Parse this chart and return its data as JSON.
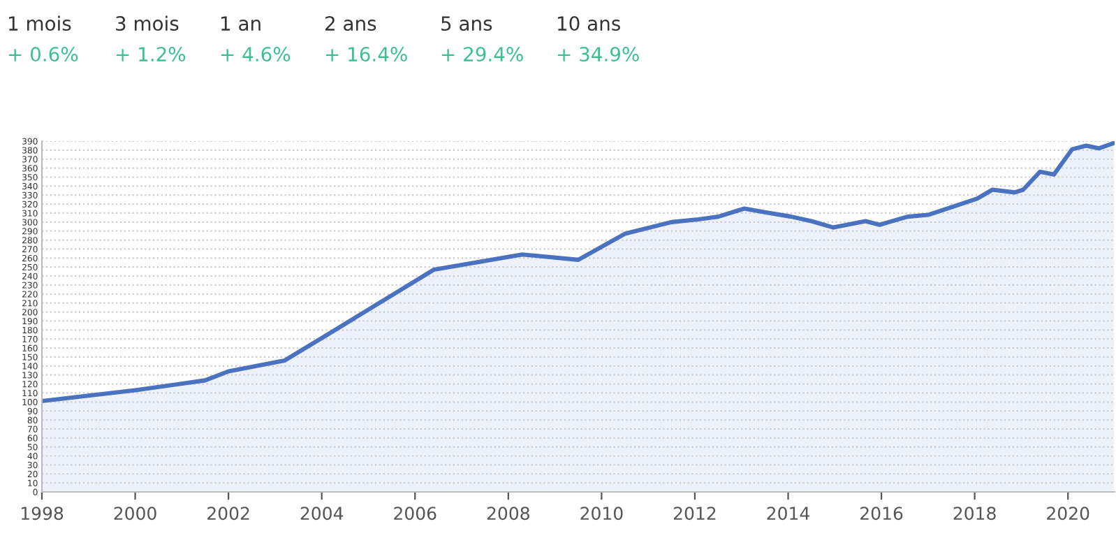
{
  "chart_data": {
    "type": "area",
    "color": "#4a72c0",
    "annotations": [
      "1 mois",
      "+ 0.6%",
      "3 mois",
      "+ 1.2%",
      "1 an",
      "+ 4.6%",
      "2 ans",
      "+ 16.4%",
      "5 ans",
      "+ 29.4%",
      "10 ans",
      "+ 34.9%"
    ],
    "x": [
      1998,
      2000,
      2001.5,
      2002,
      2003.2,
      2004,
      2006.4,
      2008.3,
      2009.5,
      2010.5,
      2011.5,
      2012.07,
      2012.5,
      2013.06,
      2013.5,
      2014.07,
      2014.5,
      2014.97,
      2015.66,
      2015.96,
      2016.56,
      2017,
      2018.05,
      2018.38,
      2018.86,
      2019.04,
      2019.4,
      2019.7,
      2020.09,
      2020.39,
      2020.66,
      2020.99
    ],
    "values": [
      101,
      113,
      124,
      134,
      146,
      171,
      247,
      264,
      258,
      287,
      300,
      303,
      306,
      315,
      311,
      306,
      301,
      294,
      301,
      297,
      306,
      308,
      326,
      336,
      333,
      336,
      356,
      353,
      381,
      385,
      382,
      388
    ],
    "xlim": [
      1998,
      2021
    ],
    "xticks": [
      1998,
      2000,
      2002,
      2004,
      2006,
      2008,
      2010,
      2012,
      2014,
      2016,
      2018,
      2020
    ],
    "ylim": [
      0,
      390
    ],
    "yticks": [
      0,
      10,
      20,
      30,
      40,
      50,
      60,
      70,
      80,
      90,
      100,
      110,
      120,
      130,
      140,
      150,
      160,
      170,
      180,
      190,
      200,
      210,
      220,
      230,
      240,
      250,
      260,
      270,
      280,
      290,
      300,
      310,
      320,
      330,
      340,
      350,
      360,
      370,
      380,
      390
    ],
    "grid": "y",
    "line_style": "solid",
    "marker": "none"
  }
}
